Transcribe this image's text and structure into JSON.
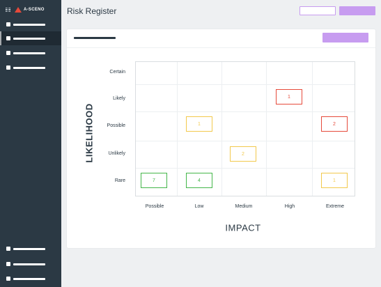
{
  "app": {
    "brand": "A-SCENO"
  },
  "header": {
    "title": "Risk Register"
  },
  "matrix": {
    "y_axis": "LIKELIHOOD",
    "x_axis": "IMPACT",
    "rows": [
      "Certain",
      "Likely",
      "Possible",
      "Unlikely",
      "Rare"
    ],
    "columns": [
      "Possible",
      "Low",
      "Medium",
      "High",
      "Extreme"
    ],
    "cells": [
      {
        "row": "Likely",
        "column": "High",
        "count": "1",
        "color": "#e64a3b"
      },
      {
        "row": "Possible",
        "column": "Low",
        "count": "1",
        "color": "#f2c94c"
      },
      {
        "row": "Possible",
        "column": "Extreme",
        "count": "2",
        "color": "#e64a3b"
      },
      {
        "row": "Unlikely",
        "column": "Medium",
        "count": "2",
        "color": "#f2c94c"
      },
      {
        "row": "Rare",
        "column": "Possible",
        "count": "7",
        "color": "#43b649"
      },
      {
        "row": "Rare",
        "column": "Low",
        "count": "4",
        "color": "#43b649"
      },
      {
        "row": "Rare",
        "column": "Extreme",
        "count": "1",
        "color": "#f2c94c"
      }
    ]
  },
  "colors": {
    "sidebar": "#2b3944",
    "accent": "#c79cf0",
    "high": "#e64a3b",
    "medium": "#f2c94c",
    "low": "#43b649"
  }
}
